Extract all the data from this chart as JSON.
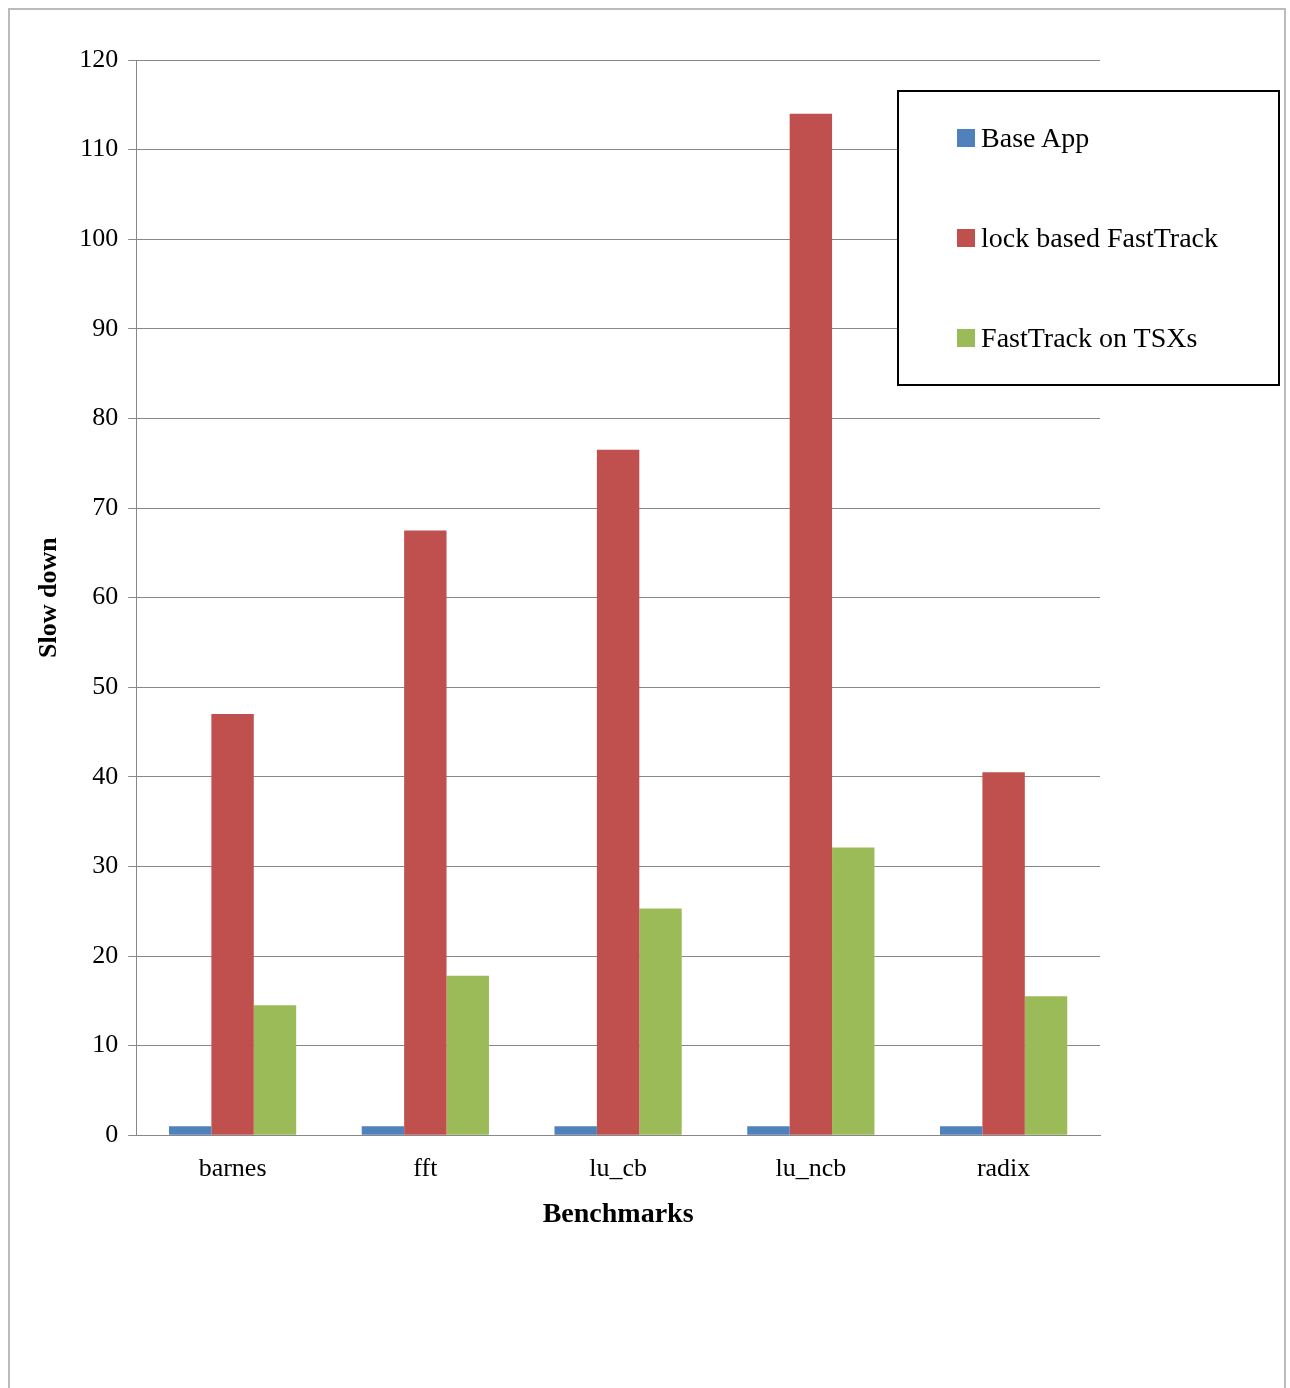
{
  "chart_data": {
    "type": "bar",
    "xlabel": "Benchmarks",
    "ylabel": "Slow down",
    "categories": [
      "barnes",
      "fft",
      "lu_cb",
      "lu_ncb",
      "radix"
    ],
    "series": [
      {
        "name": "Base App",
        "color": "#4f81bd",
        "values": [
          1,
          1,
          1,
          1,
          1
        ]
      },
      {
        "name": "lock based FastTrack",
        "color": "#c0504d",
        "values": [
          47,
          67.5,
          76.5,
          114,
          40.5
        ]
      },
      {
        "name": "FastTrack on TSXs",
        "color": "#9bbb59",
        "values": [
          14.5,
          17.8,
          25.3,
          32.1,
          15.5
        ]
      }
    ],
    "ylim": [
      0,
      120
    ],
    "yticks": [
      0,
      10,
      20,
      30,
      40,
      50,
      60,
      70,
      80,
      90,
      100,
      110,
      120
    ],
    "grid": "y",
    "legend": "top right"
  }
}
